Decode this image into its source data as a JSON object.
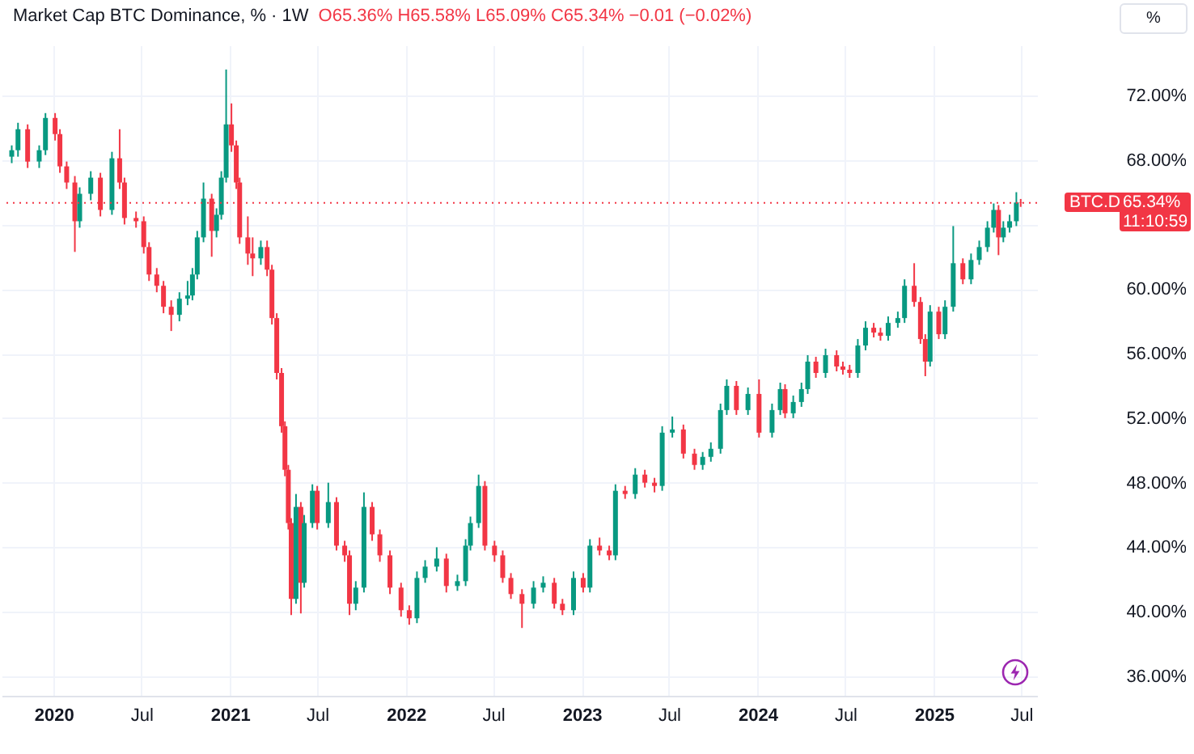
{
  "chart_data": {
    "type": "candlestick",
    "title": "Market Cap BTC Dominance, % · 1W",
    "annotations": [
      "O65.36% H65.58% L65.09% C65.34% −0.01 (−0.02%)",
      "65.34%",
      "11:10:59",
      "%"
    ],
    "x": [
      "2019-10-06",
      "2019-10-19",
      "2019-11-08",
      "2019-12-02",
      "2019-12-15",
      "2020-01-04",
      "2020-01-14",
      "2020-01-28",
      "2020-02-14",
      "2020-02-24",
      "2020-03-18",
      "2020-04-07",
      "2020-05-01",
      "2020-05-17",
      "2020-05-27",
      "2020-06-20",
      "2020-07-06",
      "2020-07-17",
      "2020-08-02",
      "2020-08-16",
      "2020-09-01",
      "2020-09-18",
      "2020-10-05",
      "2020-10-15",
      "2020-10-25",
      "2020-11-07",
      "2020-11-24",
      "2020-12-04",
      "2020-12-14",
      "2020-12-24",
      "2021-01-04",
      "2021-01-14",
      "2021-01-21",
      "2021-02-07",
      "2021-02-17",
      "2021-03-06",
      "2021-03-19",
      "2021-03-29",
      "2021-04-08",
      "2021-04-18",
      "2021-04-25",
      "2021-05-02",
      "2021-05-08",
      "2021-05-18",
      "2021-05-28",
      "2021-06-04",
      "2021-06-21",
      "2021-07-01",
      "2021-07-24",
      "2021-08-10",
      "2021-08-27",
      "2021-09-06",
      "2021-09-19",
      "2021-10-06",
      "2021-10-23",
      "2021-11-08",
      "2021-11-29",
      "2021-12-22",
      "2022-01-08",
      "2022-01-24",
      "2022-02-10",
      "2022-03-06",
      "2022-03-26",
      "2022-04-18",
      "2022-05-05",
      "2022-05-15",
      "2022-06-01",
      "2022-06-14",
      "2022-07-04",
      "2022-07-21",
      "2022-08-07",
      "2022-08-30",
      "2022-09-23",
      "2022-10-13",
      "2022-11-05",
      "2022-11-22",
      "2022-12-15",
      "2023-01-04",
      "2023-01-18",
      "2023-02-07",
      "2023-02-27",
      "2023-03-12",
      "2023-04-01",
      "2023-04-22",
      "2023-05-12",
      "2023-06-01",
      "2023-06-17",
      "2023-07-08",
      "2023-07-31",
      "2023-08-23",
      "2023-09-09",
      "2023-09-26",
      "2023-10-16",
      "2023-10-29",
      "2023-11-18",
      "2023-12-12",
      "2024-01-04",
      "2024-01-31",
      "2024-02-17",
      "2024-02-27",
      "2024-03-15",
      "2024-04-01",
      "2024-04-14",
      "2024-05-01",
      "2024-05-21",
      "2024-06-13",
      "2024-06-26",
      "2024-07-10",
      "2024-07-27",
      "2024-08-12",
      "2024-08-29",
      "2024-09-12",
      "2024-09-28",
      "2024-10-18",
      "2024-11-01",
      "2024-11-21",
      "2024-12-04",
      "2024-12-14",
      "2024-12-24",
      "2025-01-11",
      "2025-01-24",
      "2025-02-10",
      "2025-03-02",
      "2025-03-19",
      "2025-04-05",
      "2025-04-22",
      "2025-05-05",
      "2025-05-15",
      "2025-05-25",
      "2025-06-07",
      "2025-06-21",
      "2025-06-30"
    ],
    "ohlc": [
      [
        68.2,
        68.9,
        67.8,
        68.6
      ],
      [
        68.6,
        70.3,
        68.2,
        69.9
      ],
      [
        69.9,
        70.2,
        67.5,
        67.9
      ],
      [
        67.9,
        68.9,
        67.5,
        68.6
      ],
      [
        68.6,
        70.9,
        68.3,
        70.6
      ],
      [
        70.6,
        70.9,
        69.2,
        69.6
      ],
      [
        69.6,
        69.9,
        67.2,
        67.6
      ],
      [
        67.6,
        67.9,
        66.2,
        66.6
      ],
      [
        66.6,
        67.0,
        62.3,
        64.2
      ],
      [
        64.2,
        66.3,
        63.8,
        65.9
      ],
      [
        65.9,
        67.3,
        65.5,
        66.9
      ],
      [
        66.9,
        67.2,
        64.5,
        64.9
      ],
      [
        64.9,
        68.5,
        64.6,
        68.1
      ],
      [
        68.1,
        69.9,
        66.2,
        66.6
      ],
      [
        66.6,
        66.9,
        64.0,
        64.4
      ],
      [
        64.4,
        64.8,
        63.8,
        64.2
      ],
      [
        64.2,
        64.5,
        62.2,
        62.6
      ],
      [
        62.6,
        62.9,
        60.5,
        60.9
      ],
      [
        60.9,
        61.3,
        59.8,
        60.2
      ],
      [
        60.2,
        60.5,
        58.5,
        58.9
      ],
      [
        58.9,
        59.3,
        57.4,
        58.4
      ],
      [
        58.4,
        59.8,
        58.0,
        59.4
      ],
      [
        59.4,
        60.5,
        59.0,
        59.6
      ],
      [
        59.6,
        61.3,
        59.3,
        60.9
      ],
      [
        60.9,
        63.6,
        60.6,
        63.2
      ],
      [
        63.2,
        66.6,
        62.9,
        65.6
      ],
      [
        65.6,
        65.9,
        62.0,
        63.6
      ],
      [
        63.6,
        65.0,
        63.2,
        64.6
      ],
      [
        64.6,
        67.3,
        64.3,
        66.9
      ],
      [
        66.9,
        73.6,
        66.6,
        70.2
      ],
      [
        70.2,
        71.5,
        68.5,
        68.9
      ],
      [
        68.9,
        69.2,
        66.2,
        66.6
      ],
      [
        66.6,
        66.9,
        62.8,
        63.2
      ],
      [
        63.2,
        64.5,
        61.5,
        62.2
      ],
      [
        62.2,
        63.2,
        60.8,
        61.9
      ],
      [
        61.9,
        63.0,
        61.5,
        62.6
      ],
      [
        62.6,
        63.0,
        60.8,
        61.2
      ],
      [
        61.2,
        61.5,
        57.8,
        58.2
      ],
      [
        58.2,
        58.5,
        54.4,
        54.8
      ],
      [
        54.8,
        55.1,
        51.1,
        51.5
      ],
      [
        51.5,
        51.8,
        48.4,
        48.8
      ],
      [
        48.8,
        49.1,
        45.1,
        45.5
      ],
      [
        45.5,
        45.8,
        39.8,
        40.8
      ],
      [
        40.8,
        47.3,
        40.5,
        46.5
      ],
      [
        46.5,
        46.8,
        39.9,
        41.8
      ],
      [
        41.8,
        46.0,
        41.5,
        45.5
      ],
      [
        45.5,
        47.9,
        45.2,
        47.5
      ],
      [
        47.5,
        47.8,
        45.1,
        45.5
      ],
      [
        45.5,
        48.0,
        45.2,
        46.8
      ],
      [
        46.8,
        47.1,
        43.8,
        44.1
      ],
      [
        44.1,
        44.4,
        43.1,
        43.5
      ],
      [
        43.5,
        43.8,
        39.8,
        40.5
      ],
      [
        40.5,
        41.9,
        40.1,
        41.5
      ],
      [
        41.5,
        47.4,
        41.2,
        46.5
      ],
      [
        46.5,
        46.8,
        44.4,
        44.8
      ],
      [
        44.8,
        45.1,
        43.1,
        43.5
      ],
      [
        43.5,
        43.8,
        41.1,
        41.5
      ],
      [
        41.5,
        41.8,
        39.7,
        40.1
      ],
      [
        40.1,
        40.4,
        39.2,
        39.6
      ],
      [
        39.6,
        42.5,
        39.3,
        42.1
      ],
      [
        42.1,
        43.2,
        41.8,
        42.8
      ],
      [
        42.8,
        44.0,
        42.5,
        43.3
      ],
      [
        43.3,
        43.6,
        41.2,
        41.6
      ],
      [
        41.6,
        42.3,
        41.3,
        41.9
      ],
      [
        41.9,
        44.5,
        41.6,
        44.1
      ],
      [
        44.1,
        45.9,
        43.8,
        45.5
      ],
      [
        45.5,
        48.5,
        45.2,
        47.8
      ],
      [
        47.8,
        48.1,
        43.8,
        44.1
      ],
      [
        44.1,
        44.4,
        43.1,
        43.5
      ],
      [
        43.5,
        43.8,
        41.8,
        42.1
      ],
      [
        42.1,
        42.4,
        40.8,
        41.1
      ],
      [
        41.1,
        41.4,
        39.0,
        40.5
      ],
      [
        40.5,
        41.9,
        40.2,
        41.5
      ],
      [
        41.5,
        42.2,
        41.2,
        41.8
      ],
      [
        41.8,
        42.1,
        40.2,
        40.5
      ],
      [
        40.5,
        40.8,
        39.8,
        40.1
      ],
      [
        40.1,
        42.5,
        39.8,
        42.1
      ],
      [
        42.1,
        42.4,
        41.2,
        41.5
      ],
      [
        41.5,
        44.5,
        41.2,
        44.1
      ],
      [
        44.1,
        44.6,
        43.5,
        43.8
      ],
      [
        43.8,
        44.1,
        43.2,
        43.5
      ],
      [
        43.5,
        47.9,
        43.2,
        47.5
      ],
      [
        47.5,
        47.8,
        47.0,
        47.3
      ],
      [
        47.3,
        48.9,
        47.0,
        48.5
      ],
      [
        48.5,
        48.8,
        47.7,
        48.0
      ],
      [
        48.0,
        48.3,
        47.4,
        47.8
      ],
      [
        47.8,
        51.5,
        47.5,
        51.1
      ],
      [
        51.1,
        52.1,
        50.8,
        51.3
      ],
      [
        51.3,
        51.6,
        49.5,
        49.8
      ],
      [
        49.8,
        50.1,
        48.8,
        49.1
      ],
      [
        49.1,
        49.9,
        48.8,
        49.6
      ],
      [
        49.6,
        50.5,
        49.3,
        50.1
      ],
      [
        50.1,
        52.9,
        49.8,
        52.5
      ],
      [
        52.5,
        54.4,
        52.2,
        54.0
      ],
      [
        54.0,
        54.3,
        52.2,
        52.5
      ],
      [
        52.5,
        53.9,
        52.2,
        53.5
      ],
      [
        53.5,
        54.4,
        50.8,
        51.1
      ],
      [
        51.1,
        52.9,
        50.8,
        52.5
      ],
      [
        52.5,
        54.2,
        52.2,
        53.8
      ],
      [
        53.8,
        54.1,
        52.0,
        52.3
      ],
      [
        52.3,
        53.4,
        52.0,
        53.0
      ],
      [
        53.0,
        54.2,
        52.7,
        53.8
      ],
      [
        53.8,
        55.9,
        53.5,
        55.5
      ],
      [
        55.5,
        55.8,
        54.5,
        54.8
      ],
      [
        54.8,
        56.3,
        54.5,
        55.9
      ],
      [
        55.9,
        56.2,
        54.9,
        55.2
      ],
      [
        55.2,
        55.5,
        54.7,
        55.0
      ],
      [
        55.0,
        55.3,
        54.5,
        54.8
      ],
      [
        54.8,
        56.9,
        54.5,
        56.5
      ],
      [
        56.5,
        58.0,
        56.2,
        57.6
      ],
      [
        57.6,
        57.9,
        57.0,
        57.3
      ],
      [
        57.3,
        57.6,
        56.8,
        57.1
      ],
      [
        57.1,
        58.3,
        56.8,
        57.9
      ],
      [
        57.9,
        58.6,
        57.6,
        58.2
      ],
      [
        58.2,
        60.6,
        57.9,
        60.2
      ],
      [
        60.2,
        61.6,
        58.9,
        59.2
      ],
      [
        59.2,
        59.5,
        56.6,
        56.9
      ],
      [
        56.9,
        57.2,
        54.6,
        55.5
      ],
      [
        55.5,
        59.0,
        55.2,
        58.6
      ],
      [
        58.6,
        58.9,
        56.9,
        57.2
      ],
      [
        57.2,
        59.3,
        56.9,
        58.9
      ],
      [
        58.9,
        63.9,
        58.6,
        61.6
      ],
      [
        61.6,
        61.9,
        60.3,
        60.6
      ],
      [
        60.6,
        62.2,
        60.3,
        61.8
      ],
      [
        61.8,
        63.0,
        61.5,
        62.6
      ],
      [
        62.6,
        64.2,
        62.3,
        63.8
      ],
      [
        63.8,
        65.3,
        63.5,
        64.9
      ],
      [
        64.9,
        65.2,
        62.1,
        63.2
      ],
      [
        63.2,
        64.2,
        62.9,
        63.8
      ],
      [
        63.8,
        64.6,
        63.5,
        64.2
      ],
      [
        64.2,
        66.0,
        63.9,
        65.36
      ],
      [
        65.36,
        65.58,
        65.09,
        65.34
      ]
    ],
    "colors": [
      "#089981",
      "#089981",
      "#f23645",
      "#089981",
      "#089981",
      "#f23645",
      "#f23645",
      "#f23645",
      "#f23645",
      "#089981",
      "#089981",
      "#f23645",
      "#089981",
      "#f23645",
      "#f23645",
      "#f23645",
      "#f23645",
      "#f23645",
      "#f23645",
      "#f23645",
      "#f23645",
      "#089981",
      "#089981",
      "#089981",
      "#089981",
      "#089981",
      "#f23645",
      "#089981",
      "#089981",
      "#089981",
      "#f23645",
      "#f23645",
      "#f23645",
      "#f23645",
      "#f23645",
      "#089981",
      "#f23645",
      "#f23645",
      "#f23645",
      "#f23645",
      "#f23645",
      "#f23645",
      "#f23645",
      "#089981",
      "#f23645",
      "#089981",
      "#089981",
      "#f23645",
      "#089981",
      "#f23645",
      "#f23645",
      "#f23645",
      "#089981",
      "#089981",
      "#f23645",
      "#f23645",
      "#f23645",
      "#f23645",
      "#f23645",
      "#089981",
      "#089981",
      "#089981",
      "#f23645",
      "#089981",
      "#089981",
      "#089981",
      "#089981",
      "#f23645",
      "#f23645",
      "#f23645",
      "#f23645",
      "#f23645",
      "#089981",
      "#089981",
      "#f23645",
      "#f23645",
      "#089981",
      "#f23645",
      "#089981",
      "#f23645",
      "#f23645",
      "#089981",
      "#f23645",
      "#089981",
      "#f23645",
      "#f23645",
      "#089981",
      "#089981",
      "#f23645",
      "#f23645",
      "#089981",
      "#089981",
      "#089981",
      "#089981",
      "#f23645",
      "#089981",
      "#f23645",
      "#089981",
      "#089981",
      "#f23645",
      "#089981",
      "#089981",
      "#089981",
      "#f23645",
      "#089981",
      "#f23645",
      "#f23645",
      "#f23645",
      "#089981",
      "#089981",
      "#f23645",
      "#f23645",
      "#089981",
      "#089981",
      "#089981",
      "#f23645",
      "#f23645",
      "#f23645",
      "#089981",
      "#f23645",
      "#089981",
      "#089981",
      "#f23645",
      "#089981",
      "#089981",
      "#089981",
      "#089981",
      "#f23645",
      "#089981",
      "#089981",
      "#089981",
      "#f23645"
    ],
    "xlim": [
      "2019-09-15",
      "2025-08-03"
    ],
    "xticks": [
      {
        "value": "2020-01-01",
        "label": "2020"
      },
      {
        "value": "2020-07-01",
        "label": "Jul"
      },
      {
        "value": "2021-01-01",
        "label": "2021"
      },
      {
        "value": "2021-07-01",
        "label": "Jul"
      },
      {
        "value": "2022-01-01",
        "label": "2022"
      },
      {
        "value": "2022-07-01",
        "label": "Jul"
      },
      {
        "value": "2023-01-01",
        "label": "2023"
      },
      {
        "value": "2023-07-01",
        "label": "Jul"
      },
      {
        "value": "2024-01-01",
        "label": "2024"
      },
      {
        "value": "2024-07-01",
        "label": "Jul"
      },
      {
        "value": "2025-01-01",
        "label": "2025"
      },
      {
        "value": "2025-07-01",
        "label": "Jul"
      }
    ],
    "ylim": [
      34.8,
      75.1
    ],
    "yticks": [
      {
        "value": 36,
        "label": "36.00%"
      },
      {
        "value": 40,
        "label": "40.00%"
      },
      {
        "value": 44,
        "label": "44.00%"
      },
      {
        "value": 48,
        "label": "48.00%"
      },
      {
        "value": 52,
        "label": "52.00%"
      },
      {
        "value": 56,
        "label": "56.00%"
      },
      {
        "value": 60,
        "label": "60.00%"
      },
      {
        "value": 64,
        "label": null
      },
      {
        "value": 68,
        "label": "68.00%"
      },
      {
        "value": 72,
        "label": "72.00%"
      }
    ],
    "grid": true,
    "ref_lines": [
      {
        "axis": "y",
        "value": 65.34,
        "label": "BTC.D",
        "color": "#f23645",
        "line_style": "dotted"
      }
    ]
  }
}
